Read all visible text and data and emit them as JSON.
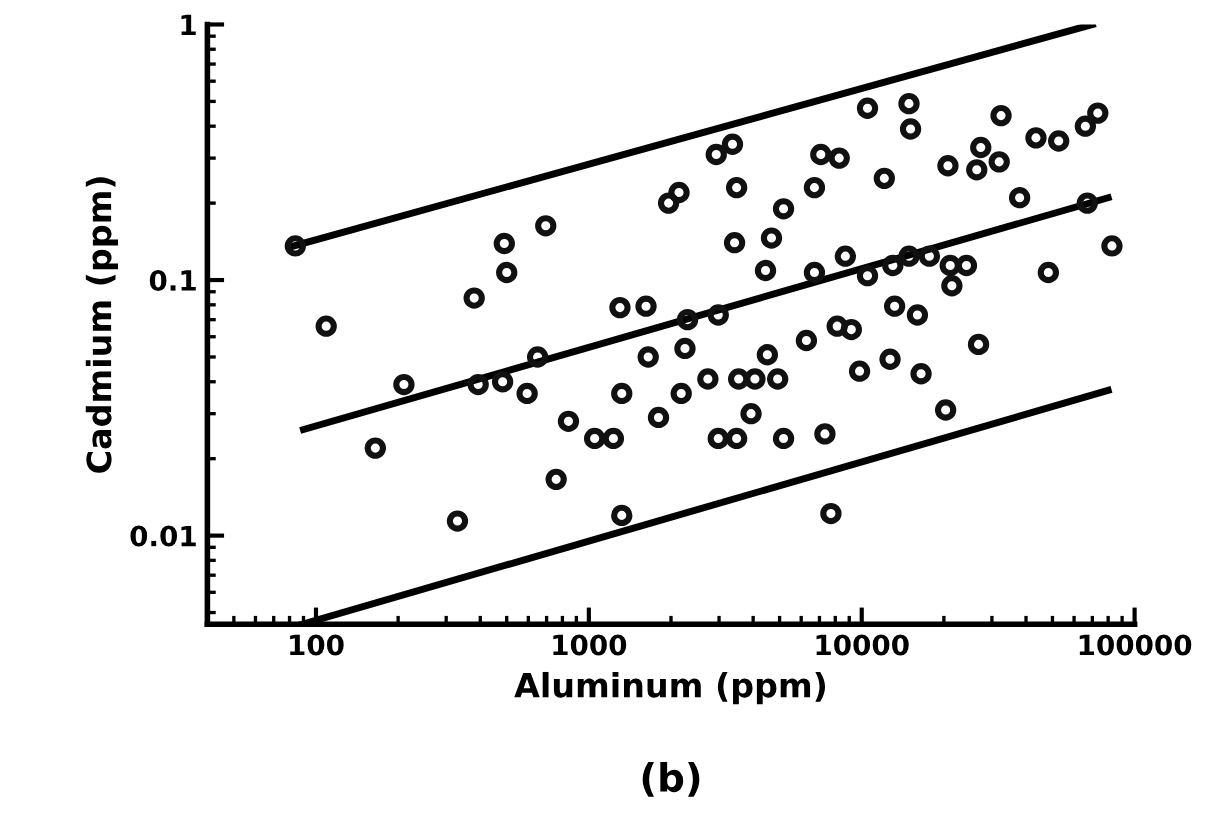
{
  "chart_data": {
    "type": "scatter",
    "xlabel": "Aluminum (ppm)",
    "ylabel": "Cadmium (ppm)",
    "log": "xy",
    "grid": false,
    "xlim": [
      40,
      100000
    ],
    "ylim": [
      0.0045,
      1
    ],
    "xticks": [
      100,
      1000,
      10000,
      100000
    ],
    "yticks": [
      0.01,
      0.1,
      1
    ],
    "annotations": [
      "(b)"
    ],
    "series": [
      {
        "color": "#111111",
        "marker": "circle",
        "x": [
          84,
          109,
          165,
          210,
          330,
          380,
          393,
          490,
          500,
          483,
          594,
          695,
          649,
          759,
          842,
          1050,
          1230,
          1300,
          1320,
          1320,
          1620,
          1650,
          1800,
          10500,
          14900,
          15100,
          32400,
          43500,
          52700,
          66000,
          73300,
          2930,
          3360,
          7080,
          8270,
          20700,
          27300,
          26400,
          31900,
          1960,
          2140,
          3480,
          5170,
          6710,
          12100,
          37900,
          67100,
          3420,
          4670,
          8710,
          4440,
          6710,
          10500,
          13000,
          14900,
          17700,
          21100,
          24200,
          21400,
          48300,
          82600,
          2300,
          2980,
          2250,
          2730,
          3540,
          4060,
          4510,
          4920,
          6270,
          8130,
          9160,
          9820,
          12700,
          13200,
          16000,
          16500,
          26800,
          2180,
          3930,
          2980,
          3480,
          5170,
          7330,
          20300,
          7710
        ],
        "values": [
          0.136,
          0.066,
          0.022,
          0.039,
          0.0114,
          0.085,
          0.039,
          0.139,
          0.107,
          0.04,
          0.036,
          0.163,
          0.05,
          0.0166,
          0.028,
          0.024,
          0.024,
          0.078,
          0.036,
          0.012,
          0.079,
          0.05,
          0.029,
          0.47,
          0.49,
          0.39,
          0.44,
          0.36,
          0.35,
          0.4,
          0.45,
          0.31,
          0.34,
          0.31,
          0.3,
          0.28,
          0.33,
          0.27,
          0.29,
          0.2,
          0.22,
          0.23,
          0.19,
          0.23,
          0.25,
          0.21,
          0.2,
          0.14,
          0.146,
          0.124,
          0.109,
          0.107,
          0.104,
          0.114,
          0.124,
          0.124,
          0.114,
          0.114,
          0.095,
          0.107,
          0.136,
          0.07,
          0.073,
          0.054,
          0.041,
          0.041,
          0.041,
          0.051,
          0.041,
          0.058,
          0.066,
          0.064,
          0.044,
          0.049,
          0.079,
          0.073,
          0.043,
          0.056,
          0.036,
          0.03,
          0.024,
          0.024,
          0.024,
          0.025,
          0.031,
          0.0122
        ]
      },
      {
        "type": "line",
        "color": "#000000",
        "marker": "none",
        "line_style": "solid",
        "x": [
          83,
          70000
        ],
        "values": [
          0.136,
          1.0
        ]
      },
      {
        "type": "line",
        "color": "#000000",
        "marker": "none",
        "line_style": "solid",
        "x": [
          90,
          80000
        ],
        "values": [
          0.026,
          0.21
        ]
      },
      {
        "type": "line",
        "color": "#000000",
        "marker": "none",
        "line_style": "solid",
        "x": [
          89,
          80000
        ],
        "values": [
          0.0045,
          0.037
        ]
      }
    ]
  }
}
